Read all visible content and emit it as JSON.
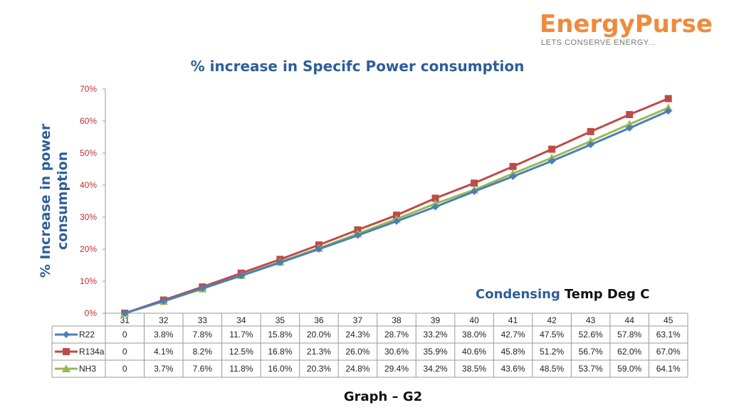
{
  "logo": {
    "brand": "EnergyPurse",
    "tagline": "LETS CONSERVE ENERGY..."
  },
  "footer": {
    "caption": "Graph – G2"
  },
  "chart_data": {
    "type": "line",
    "title": "% increase in Specifc Power consumption",
    "ylabel": "% Increase in power consumption",
    "xlabel_part1": "Condensing",
    "xlabel_part2": "Temp Deg C",
    "ylim": [
      0,
      70
    ],
    "yticks": [
      "0%",
      "10%",
      "20%",
      "30%",
      "40%",
      "50%",
      "60%",
      "70%"
    ],
    "grid": false,
    "legend": "data-table",
    "categories": [
      "31",
      "32",
      "33",
      "34",
      "35",
      "36",
      "37",
      "38",
      "39",
      "40",
      "41",
      "42",
      "43",
      "44",
      "45"
    ],
    "series": [
      {
        "name": "R22",
        "color": "#4a7ebb",
        "marker": "diamond",
        "values": [
          0,
          3.8,
          7.8,
          11.7,
          15.8,
          20.0,
          24.3,
          28.7,
          33.2,
          38.0,
          42.7,
          47.5,
          52.6,
          57.8,
          63.1
        ],
        "labels": [
          "0",
          "3.8%",
          "7.8%",
          "11.7%",
          "15.8%",
          "20.0%",
          "24.3%",
          "28.7%",
          "33.2%",
          "38.0%",
          "42.7%",
          "47.5%",
          "52.6%",
          "57.8%",
          "63.1%"
        ]
      },
      {
        "name": "R134a",
        "color": "#be4b48",
        "marker": "square",
        "values": [
          0,
          4.1,
          8.2,
          12.5,
          16.8,
          21.3,
          26.0,
          30.6,
          35.9,
          40.6,
          45.8,
          51.2,
          56.7,
          62.0,
          67.0
        ],
        "labels": [
          "0",
          "4.1%",
          "8.2%",
          "12.5%",
          "16.8%",
          "21.3%",
          "26.0%",
          "30.6%",
          "35.9%",
          "40.6%",
          "45.8%",
          "51.2%",
          "56.7%",
          "62.0%",
          "67.0%"
        ]
      },
      {
        "name": "NH3",
        "color": "#98b954",
        "marker": "triangle",
        "values": [
          0,
          3.7,
          7.6,
          11.8,
          16.0,
          20.3,
          24.8,
          29.4,
          34.2,
          38.5,
          43.6,
          48.5,
          53.7,
          59.0,
          64.1
        ],
        "labels": [
          "0",
          "3.7%",
          "7.6%",
          "11.8%",
          "16.0%",
          "20.3%",
          "24.8%",
          "29.4%",
          "34.2%",
          "38.5%",
          "43.6%",
          "48.5%",
          "53.7%",
          "59.0%",
          "64.1%"
        ]
      }
    ],
    "colors": {
      "title": "#2e5e99",
      "ytick": "#c0302d",
      "axis": "#999999"
    }
  }
}
